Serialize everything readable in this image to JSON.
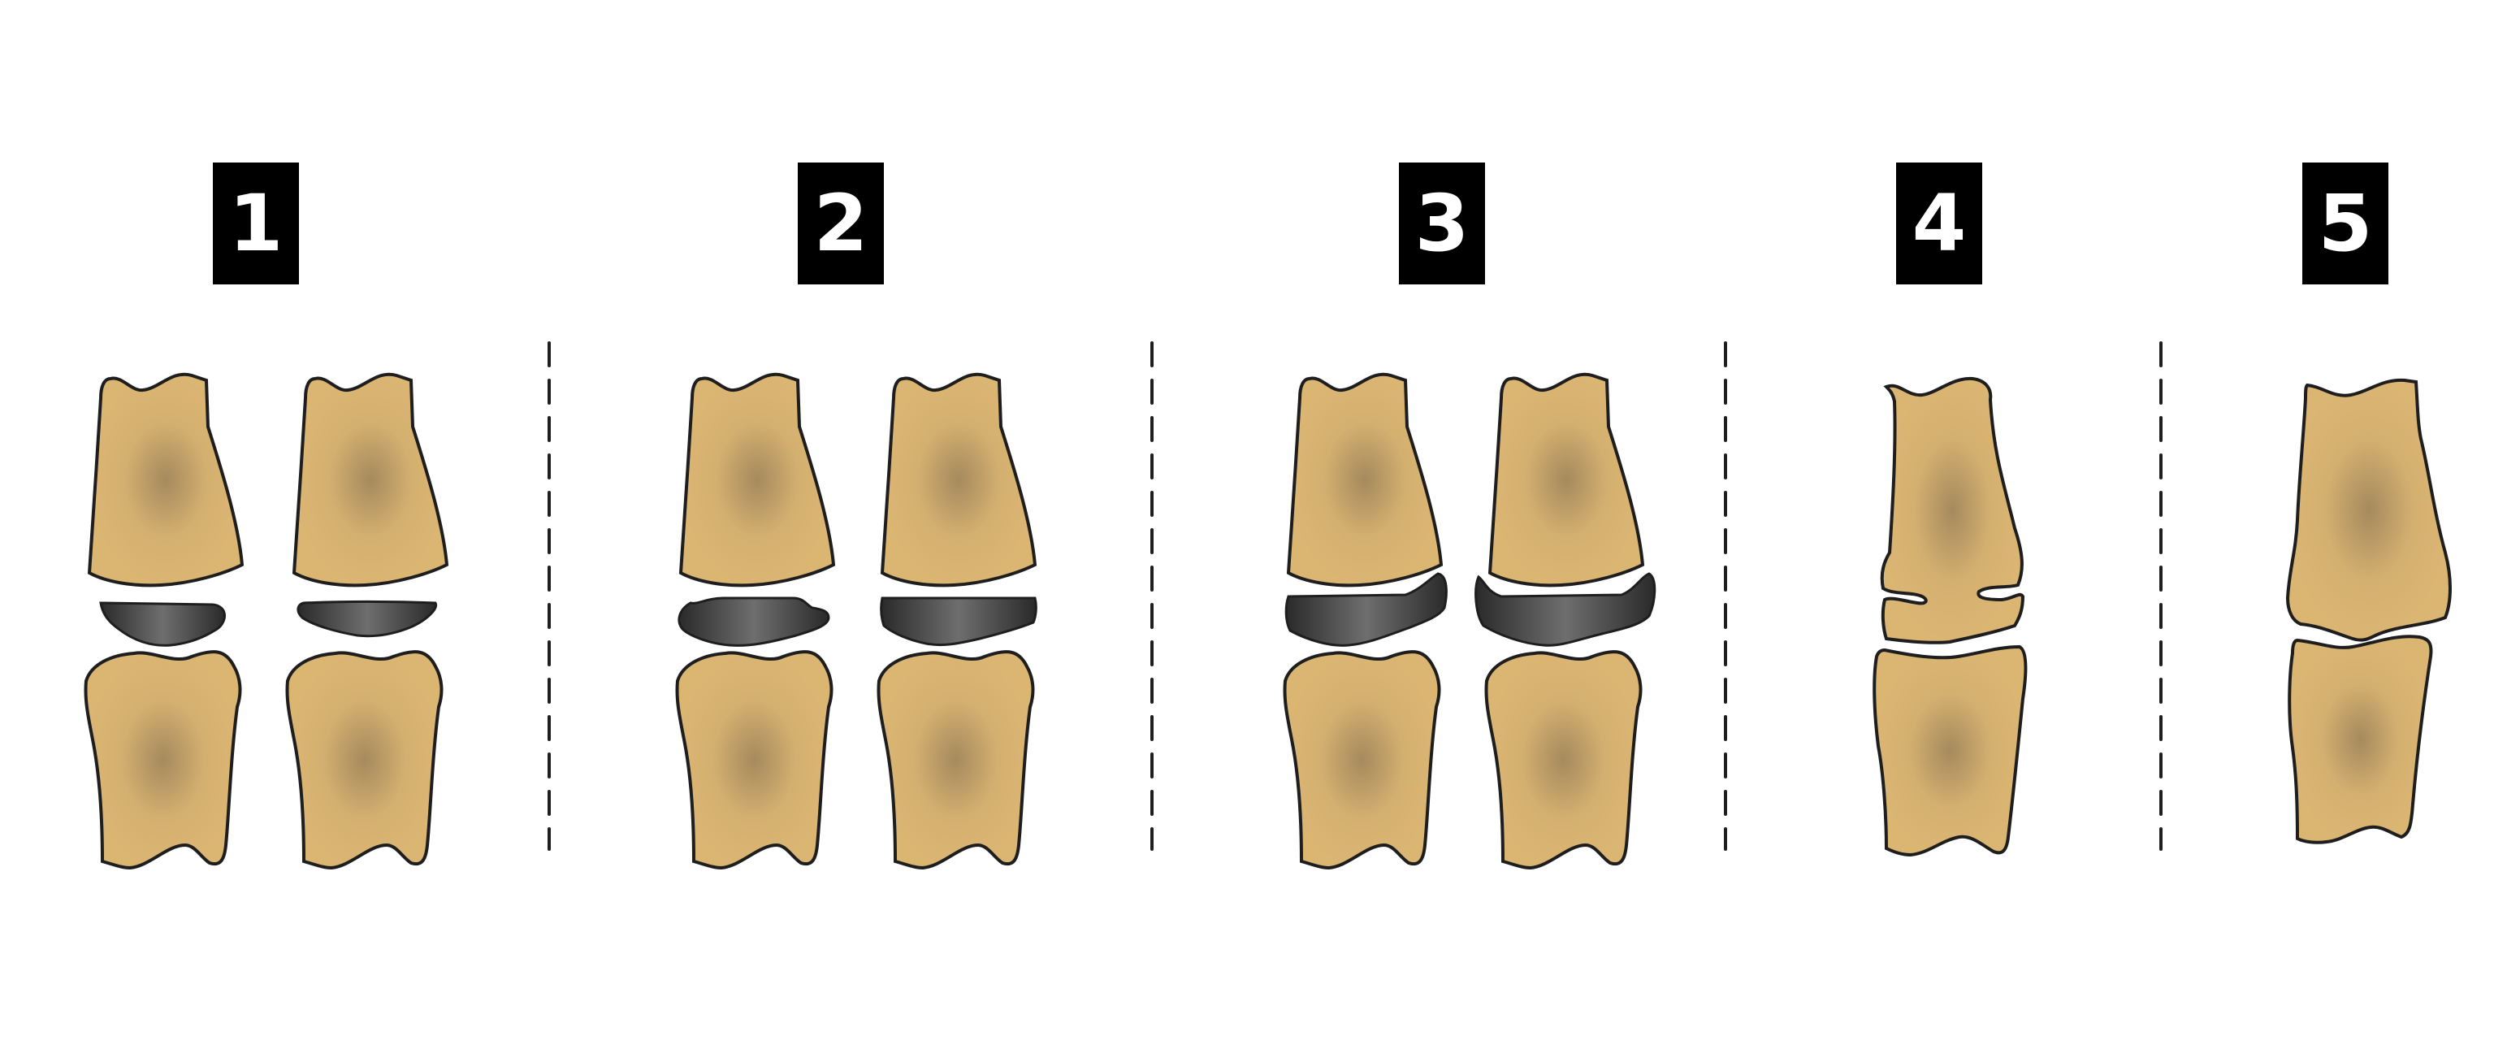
{
  "stages": [
    {
      "label": "1"
    },
    {
      "label": "2"
    },
    {
      "label": "3"
    },
    {
      "label": "4"
    },
    {
      "label": "5"
    }
  ],
  "colors": {
    "bone": "#dbb572",
    "bone_center": "#a68a5e",
    "outline": "#1e1e1e",
    "cartilage_dark": "#2a2a2a",
    "cartilage_light": "#6e6e6e",
    "badge_bg": "#000000",
    "badge_text": "#ffffff"
  }
}
